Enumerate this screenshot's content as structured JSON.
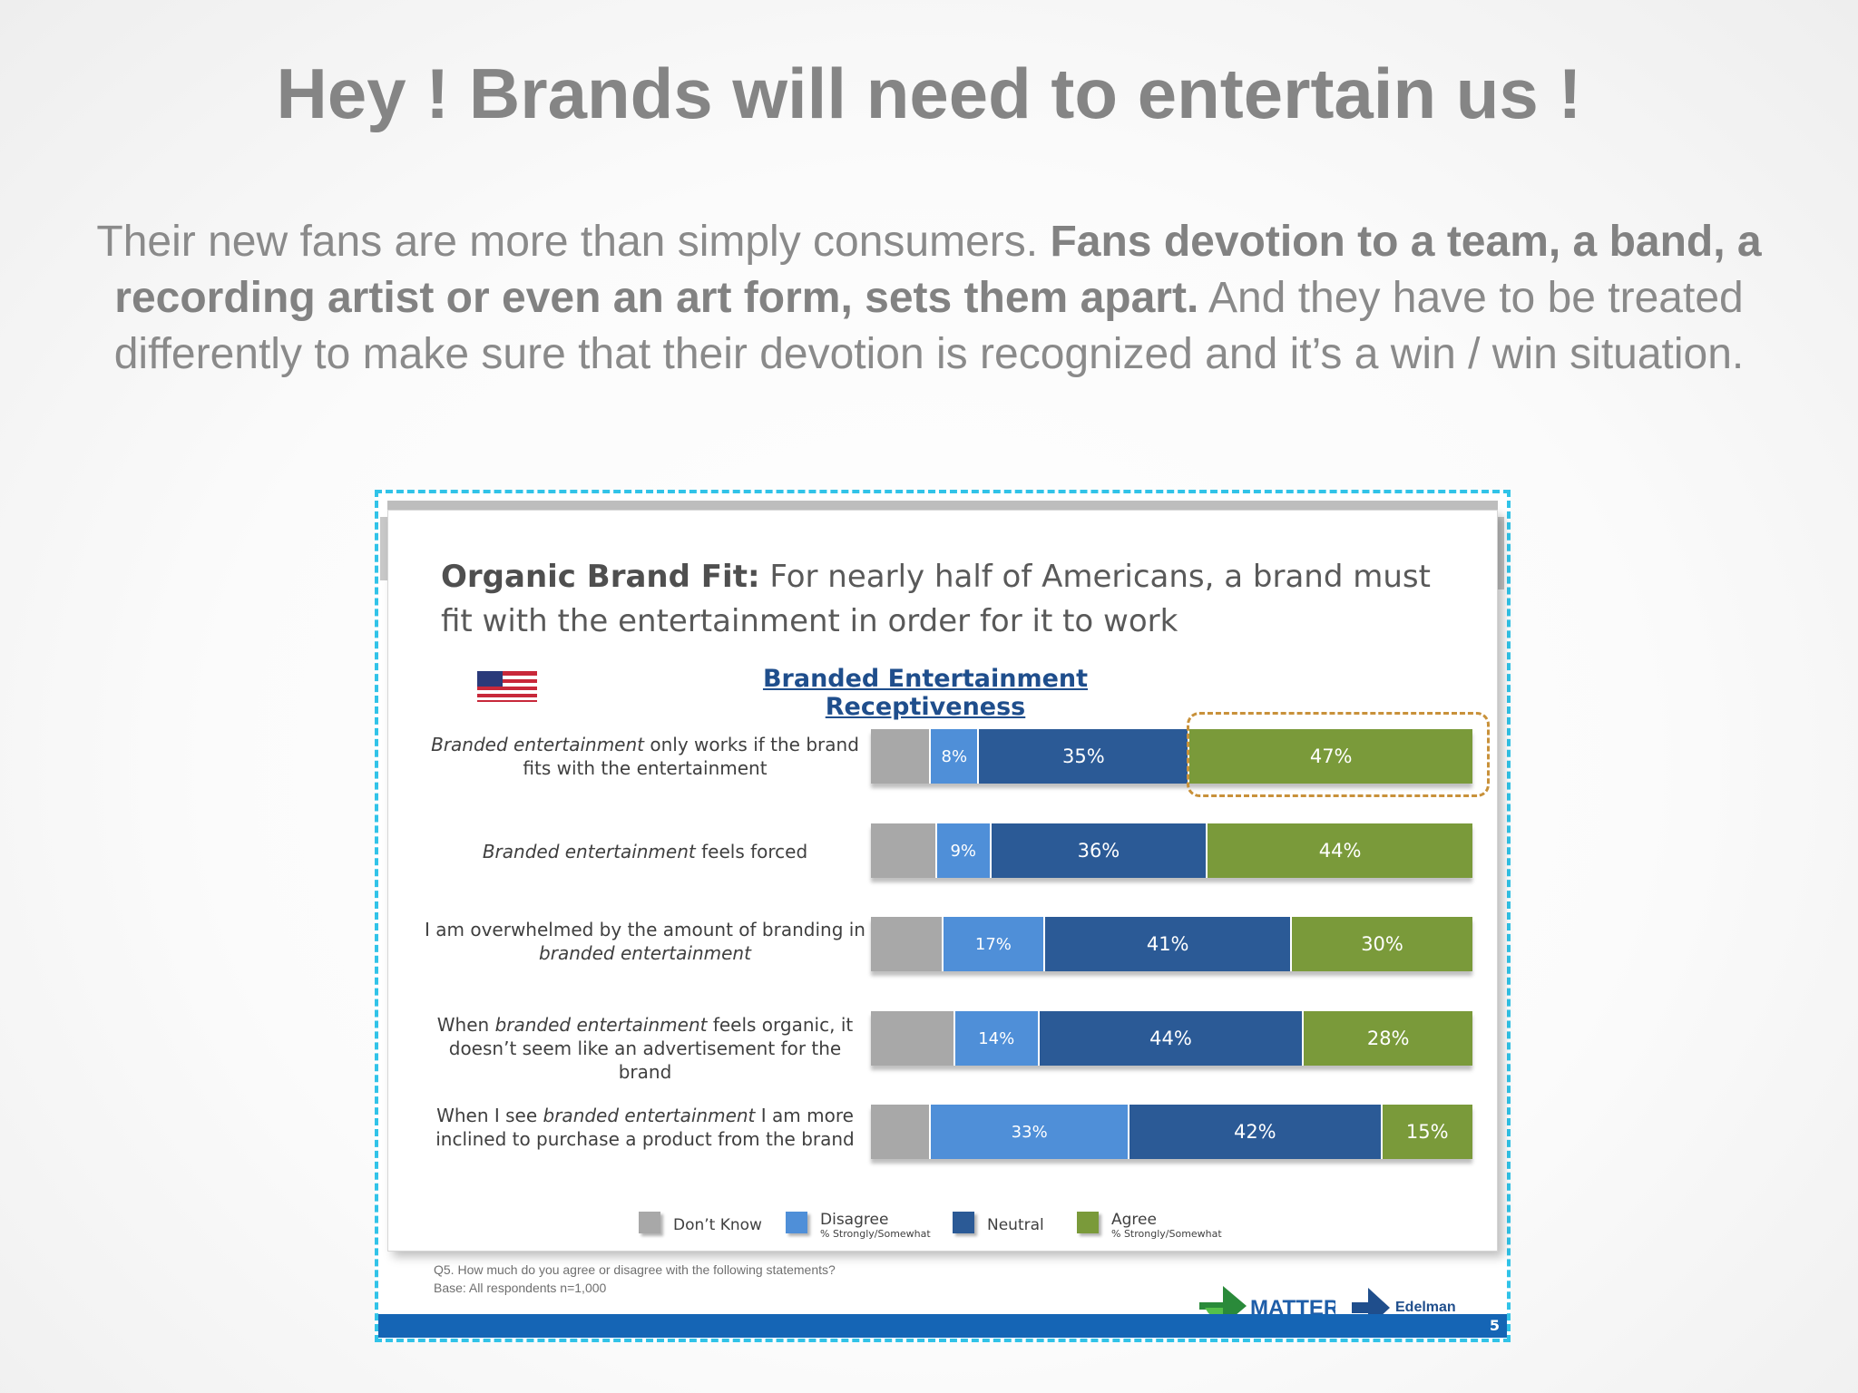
{
  "slide": {
    "title": "Hey ! Brands will need to entertain us !",
    "intro": {
      "part1": "Their new fans are more than simply consumers.  ",
      "bold": "Fans devotion to a team, a band,  a recording artist or even an art form, sets them apart.",
      "part2": " And they have to be treated differently  to make sure that their devotion is recognized and it’s a win / win situation."
    }
  },
  "chart_data": {
    "type": "bar",
    "orientation": "horizontal-stacked",
    "title_bold": "Organic Brand Fit:",
    "title": " For nearly half of Americans, a brand must fit with the entertainment in order for it to work",
    "subtitle": "Branded Entertainment Receptiveness",
    "categories": [
      {
        "before": "",
        "italic": "Branded entertainment",
        "after": " only works if the brand fits with the entertainment"
      },
      {
        "before": "",
        "italic": "Branded entertainment",
        "after": " feels forced"
      },
      {
        "before": "I am overwhelmed by the amount of branding in ",
        "italic": "branded entertainment",
        "after": ""
      },
      {
        "before": "When ",
        "italic": "branded entertainment",
        "after": " feels organic, it doesn’t seem like an advertisement for the brand"
      },
      {
        "before": "When I see ",
        "italic": "branded entertainment",
        "after": " I am more inclined to purchase a product from the brand"
      }
    ],
    "series": [
      {
        "name": "Don’t Know",
        "values": [
          10,
          11,
          12,
          14,
          10
        ],
        "color": "#a8a8a8",
        "labels": [
          "",
          "",
          "",
          "",
          ""
        ]
      },
      {
        "name": "Disagree",
        "sub": "% Strongly/Somewhat",
        "values": [
          8,
          9,
          17,
          14,
          33
        ],
        "color": "#4f8fd8",
        "labels": [
          "8%",
          "9%",
          "17%",
          "14%",
          "33%"
        ]
      },
      {
        "name": "Neutral",
        "values": [
          35,
          36,
          41,
          44,
          42
        ],
        "color": "#2b5a96",
        "labels": [
          "35%",
          "36%",
          "41%",
          "44%",
          "42%"
        ]
      },
      {
        "name": "Agree",
        "sub": "% Strongly/Somewhat",
        "values": [
          47,
          44,
          30,
          28,
          15
        ],
        "color": "#7a9a3a",
        "labels": [
          "47%",
          "44%",
          "30%",
          "28%",
          "15%"
        ]
      }
    ],
    "highlight": {
      "row": 0,
      "series": "Agree"
    }
  },
  "footnote": {
    "question": "Q5. How much do you agree or disagree with the following statements?",
    "base": "Base: All respondents n=1,000"
  },
  "logos": {
    "matter": "MATTER",
    "edelman": "Edelman"
  },
  "page_number": "5"
}
